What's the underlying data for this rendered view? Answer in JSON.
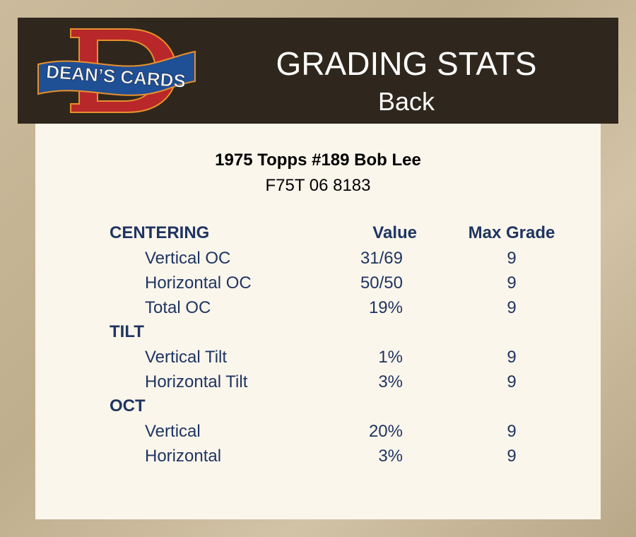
{
  "header": {
    "logo_text": "DEAN'S CARDS",
    "title": "GRADING STATS",
    "subtitle": "Back"
  },
  "card": {
    "name": "1975 Topps #189 Bob Lee",
    "cert": "F75T 06 8183"
  },
  "table": {
    "columns": {
      "value": "Value",
      "max": "Max Grade"
    },
    "rows": [
      {
        "label": "CENTERING",
        "type": "section"
      },
      {
        "label": "Vertical OC",
        "value": "31/69",
        "max": "9"
      },
      {
        "label": "Horizontal OC",
        "value": "50/50",
        "max": "9"
      },
      {
        "label": "Total OC",
        "value": "19%",
        "max": "9"
      },
      {
        "label": "TILT",
        "type": "section"
      },
      {
        "label": "Vertical Tilt",
        "value": "1%",
        "max": "9"
      },
      {
        "label": "Horizontal Tilt",
        "value": "3%",
        "max": "9"
      },
      {
        "label": "OCT",
        "type": "section"
      },
      {
        "label": "Vertical",
        "value": "20%",
        "max": "9"
      },
      {
        "label": "Horizontal",
        "value": "3%",
        "max": "9"
      }
    ]
  }
}
